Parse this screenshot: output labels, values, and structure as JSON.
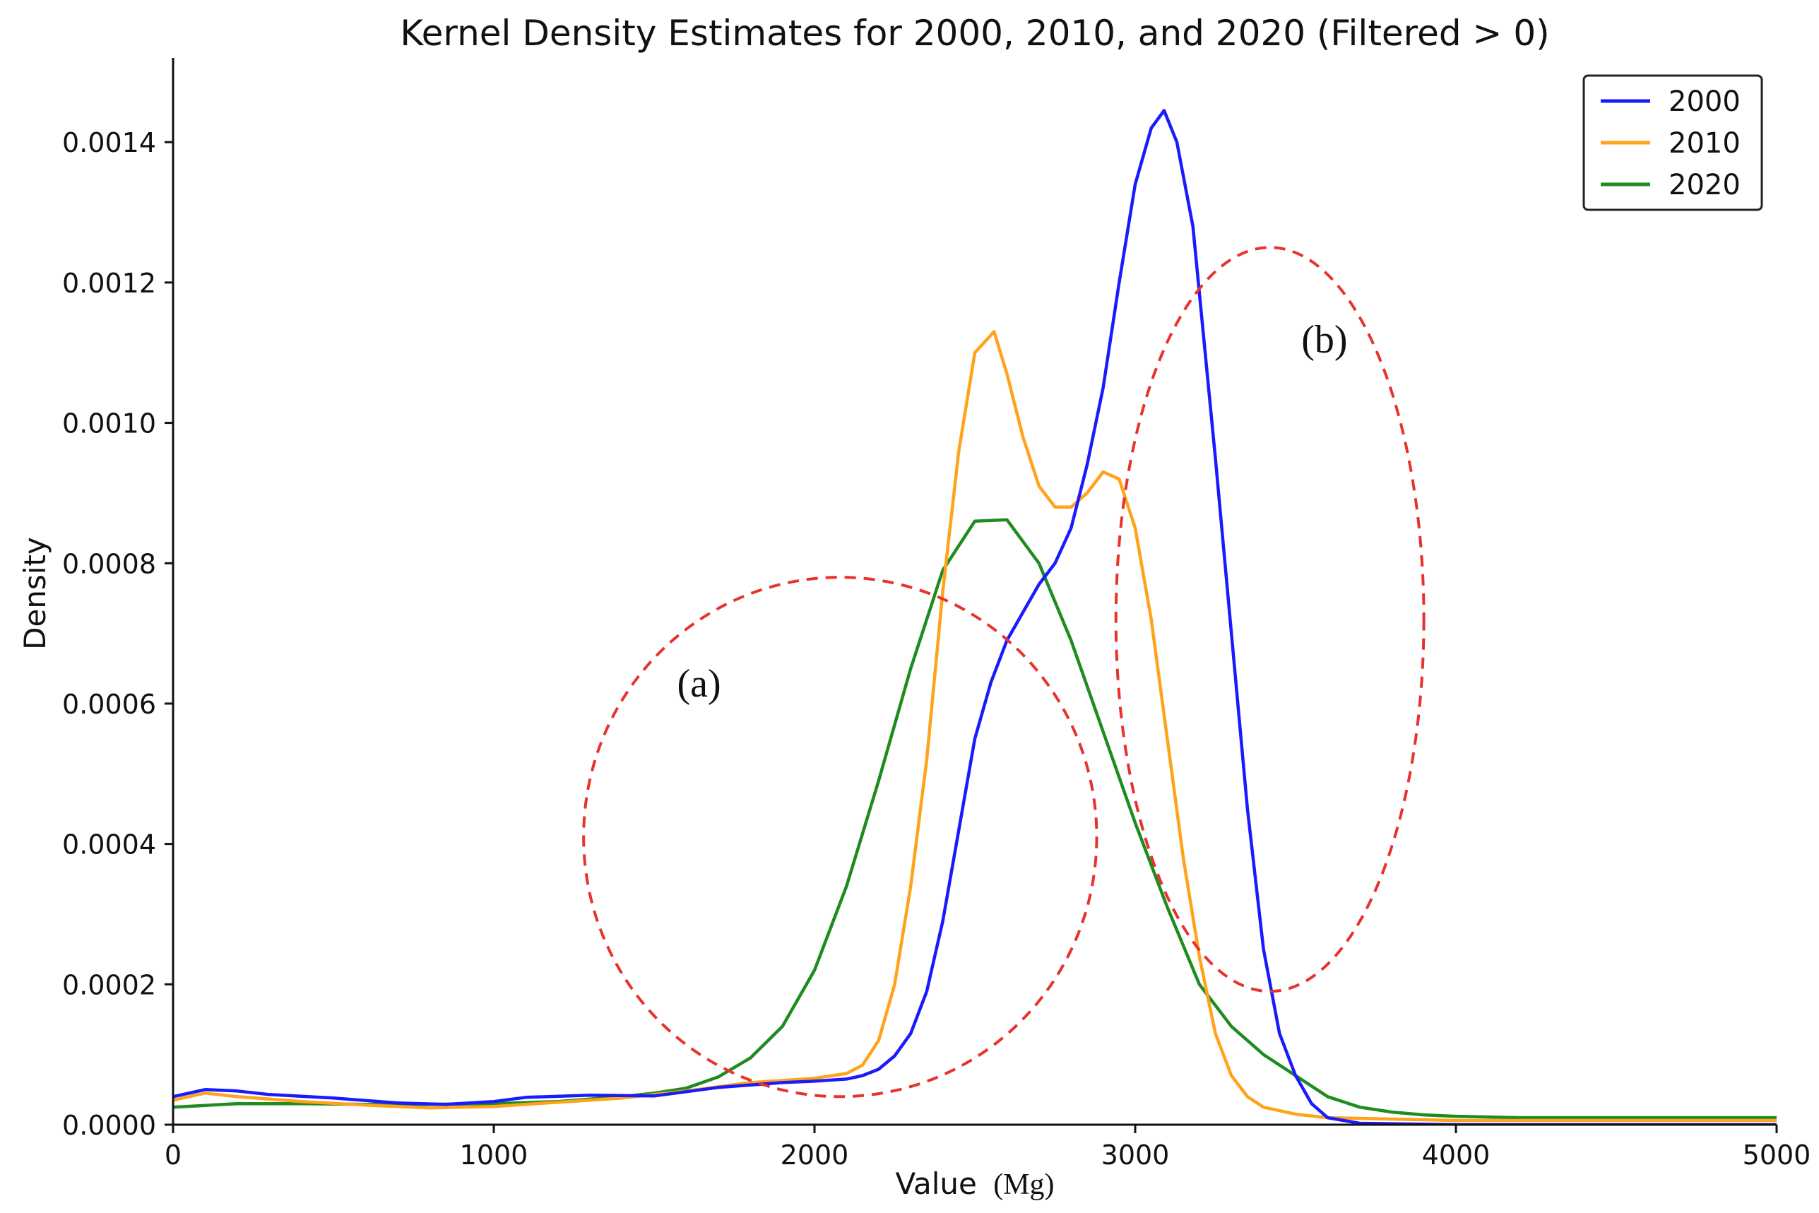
{
  "chart_data": {
    "type": "line",
    "title": "Kernel Density Estimates for 2000, 2010, and 2020 (Filtered > 0)",
    "xlabel": "Value",
    "xlabel_unit": "(Mg)",
    "ylabel": "Density",
    "xlim": [
      0,
      5000
    ],
    "ylim": [
      0,
      0.00152
    ],
    "xticks": [
      0,
      1000,
      2000,
      3000,
      4000,
      5000
    ],
    "xtick_labels": [
      "0",
      "1000",
      "2000",
      "3000",
      "4000",
      "5000"
    ],
    "yticks": [
      0,
      0.0002,
      0.0004,
      0.0006,
      0.0008,
      0.001,
      0.0012,
      0.0014
    ],
    "ytick_labels": [
      "0.0000",
      "0.0002",
      "0.0004",
      "0.0006",
      "0.0008",
      "0.0010",
      "0.0012",
      "0.0014"
    ],
    "grid": false,
    "legend_position": "top-right",
    "series": [
      {
        "name": "2000",
        "color": "#1a1aff",
        "points": [
          [
            0,
            4e-05
          ],
          [
            100,
            5e-05
          ],
          [
            200,
            4.8e-05
          ],
          [
            300,
            4.3e-05
          ],
          [
            500,
            3.8e-05
          ],
          [
            700,
            3.1e-05
          ],
          [
            850,
            2.9e-05
          ],
          [
            1000,
            3.3e-05
          ],
          [
            1100,
            3.9e-05
          ],
          [
            1300,
            4.2e-05
          ],
          [
            1500,
            4.1e-05
          ],
          [
            1700,
            5.3e-05
          ],
          [
            1900,
            6e-05
          ],
          [
            2000,
            6.2e-05
          ],
          [
            2100,
            6.5e-05
          ],
          [
            2150,
            7e-05
          ],
          [
            2200,
            7.9e-05
          ],
          [
            2250,
            9.8e-05
          ],
          [
            2300,
            0.00013
          ],
          [
            2350,
            0.00019
          ],
          [
            2400,
            0.00029
          ],
          [
            2450,
            0.00042
          ],
          [
            2500,
            0.00055
          ],
          [
            2550,
            0.00063
          ],
          [
            2600,
            0.00069
          ],
          [
            2650,
            0.00073
          ],
          [
            2700,
            0.00077
          ],
          [
            2750,
            0.0008
          ],
          [
            2800,
            0.00085
          ],
          [
            2850,
            0.00094
          ],
          [
            2900,
            0.00105
          ],
          [
            2950,
            0.0012
          ],
          [
            3000,
            0.00134
          ],
          [
            3050,
            0.00142
          ],
          [
            3090,
            0.001445
          ],
          [
            3130,
            0.0014
          ],
          [
            3180,
            0.00128
          ],
          [
            3250,
            0.00095
          ],
          [
            3300,
            0.0007
          ],
          [
            3350,
            0.00045
          ],
          [
            3400,
            0.00025
          ],
          [
            3450,
            0.00013
          ],
          [
            3500,
            7e-05
          ],
          [
            3550,
            3e-05
          ],
          [
            3600,
            1e-05
          ],
          [
            3700,
            2e-06
          ],
          [
            4000,
            0
          ],
          [
            5000,
            0
          ]
        ]
      },
      {
        "name": "2010",
        "color": "#ffa31a",
        "points": [
          [
            0,
            3.5e-05
          ],
          [
            100,
            4.5e-05
          ],
          [
            200,
            4e-05
          ],
          [
            400,
            3.3e-05
          ],
          [
            600,
            2.8e-05
          ],
          [
            800,
            2.4e-05
          ],
          [
            1000,
            2.6e-05
          ],
          [
            1200,
            3.2e-05
          ],
          [
            1400,
            3.8e-05
          ],
          [
            1600,
            4.8e-05
          ],
          [
            1800,
            6e-05
          ],
          [
            2000,
            6.6e-05
          ],
          [
            2100,
            7.3e-05
          ],
          [
            2150,
            8.5e-05
          ],
          [
            2200,
            0.00012
          ],
          [
            2250,
            0.0002
          ],
          [
            2300,
            0.00034
          ],
          [
            2350,
            0.00052
          ],
          [
            2400,
            0.00076
          ],
          [
            2450,
            0.00096
          ],
          [
            2500,
            0.0011
          ],
          [
            2560,
            0.00113
          ],
          [
            2600,
            0.00107
          ],
          [
            2650,
            0.00098
          ],
          [
            2700,
            0.00091
          ],
          [
            2750,
            0.00088
          ],
          [
            2800,
            0.00088
          ],
          [
            2850,
            0.0009
          ],
          [
            2900,
            0.00093
          ],
          [
            2950,
            0.00092
          ],
          [
            3000,
            0.00085
          ],
          [
            3050,
            0.00072
          ],
          [
            3100,
            0.00055
          ],
          [
            3150,
            0.00038
          ],
          [
            3200,
            0.00024
          ],
          [
            3250,
            0.00013
          ],
          [
            3300,
            7e-05
          ],
          [
            3350,
            4e-05
          ],
          [
            3400,
            2.5e-05
          ],
          [
            3500,
            1.5e-05
          ],
          [
            3600,
            1e-05
          ],
          [
            4000,
            6e-06
          ],
          [
            5000,
            6e-06
          ]
        ]
      },
      {
        "name": "2020",
        "color": "#1f8c1f",
        "points": [
          [
            0,
            2.5e-05
          ],
          [
            200,
            3e-05
          ],
          [
            400,
            3e-05
          ],
          [
            600,
            2.9e-05
          ],
          [
            800,
            2.9e-05
          ],
          [
            1000,
            3e-05
          ],
          [
            1200,
            3.3e-05
          ],
          [
            1400,
            4e-05
          ],
          [
            1500,
            4.5e-05
          ],
          [
            1600,
            5.2e-05
          ],
          [
            1700,
            6.8e-05
          ],
          [
            1800,
            9.5e-05
          ],
          [
            1900,
            0.00014
          ],
          [
            2000,
            0.00022
          ],
          [
            2100,
            0.00034
          ],
          [
            2200,
            0.00049
          ],
          [
            2300,
            0.00065
          ],
          [
            2400,
            0.00079
          ],
          [
            2500,
            0.00086
          ],
          [
            2600,
            0.000862
          ],
          [
            2700,
            0.0008
          ],
          [
            2800,
            0.00069
          ],
          [
            2900,
            0.00056
          ],
          [
            3000,
            0.00043
          ],
          [
            3100,
            0.00031
          ],
          [
            3200,
            0.0002
          ],
          [
            3300,
            0.00014
          ],
          [
            3400,
            0.0001
          ],
          [
            3500,
            7e-05
          ],
          [
            3600,
            4e-05
          ],
          [
            3700,
            2.5e-05
          ],
          [
            3800,
            1.8e-05
          ],
          [
            3900,
            1.4e-05
          ],
          [
            4000,
            1.2e-05
          ],
          [
            4200,
            1e-05
          ],
          [
            5000,
            1e-05
          ]
        ]
      }
    ],
    "annotations": [
      {
        "label": "(a)",
        "label_x": 1640,
        "label_y": 0.00061,
        "cx": 2080,
        "cy": 0.00041,
        "rx": 800,
        "ry": 0.00037
      },
      {
        "label": "(b)",
        "label_x": 3590,
        "label_y": 0.0011,
        "cx": 3420,
        "cy": 0.00072,
        "rx": 480,
        "ry": 0.00053
      }
    ]
  }
}
